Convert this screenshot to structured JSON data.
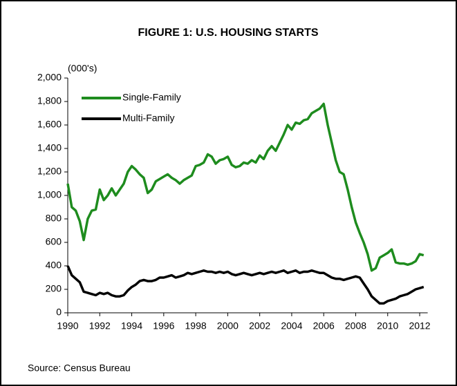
{
  "chart_data": {
    "type": "line",
    "title": "FIGURE 1: U.S. HOUSING STARTS",
    "y_label": "(000's)",
    "source": "Source: Census Bureau",
    "legend": "upper left",
    "grid": false,
    "xlim": [
      1990,
      2012.5
    ],
    "ylim": [
      0,
      2000
    ],
    "xticks": [
      1990,
      1992,
      1994,
      1996,
      1998,
      2000,
      2002,
      2004,
      2006,
      2008,
      2010,
      2012
    ],
    "yticks": [
      0,
      200,
      400,
      600,
      800,
      {
        "value": 1000,
        "label": "1,000"
      },
      {
        "value": 1200,
        "label": "1,200"
      },
      {
        "value": 1400,
        "label": "1,400"
      },
      {
        "value": 1600,
        "label": "1,600"
      },
      {
        "value": 1800,
        "label": "1,800"
      },
      {
        "value": 2000,
        "label": "2,000"
      }
    ],
    "x": [
      1990,
      1990.25,
      1990.5,
      1990.75,
      1991,
      1991.25,
      1991.5,
      1991.75,
      1992,
      1992.25,
      1992.5,
      1992.75,
      1993,
      1993.25,
      1993.5,
      1993.75,
      1994,
      1994.25,
      1994.5,
      1994.75,
      1995,
      1995.25,
      1995.5,
      1995.75,
      1996,
      1996.25,
      1996.5,
      1996.75,
      1997,
      1997.25,
      1997.5,
      1997.75,
      1998,
      1998.25,
      1998.5,
      1998.75,
      1999,
      1999.25,
      1999.5,
      1999.75,
      2000,
      2000.25,
      2000.5,
      2000.75,
      2001,
      2001.25,
      2001.5,
      2001.75,
      2002,
      2002.25,
      2002.5,
      2002.75,
      2003,
      2003.25,
      2003.5,
      2003.75,
      2004,
      2004.25,
      2004.5,
      2004.75,
      2005,
      2005.25,
      2005.5,
      2005.75,
      2006,
      2006.25,
      2006.5,
      2006.75,
      2007,
      2007.25,
      2007.5,
      2007.75,
      2008,
      2008.25,
      2008.5,
      2008.75,
      2009,
      2009.25,
      2009.5,
      2009.75,
      2010,
      2010.25,
      2010.5,
      2010.75,
      2011,
      2011.25,
      2011.5,
      2011.75,
      2012,
      2012.25
    ],
    "series": [
      {
        "name": "Single-Family",
        "color": "#1e8c1e",
        "values": [
          1100,
          900,
          870,
          780,
          620,
          800,
          870,
          880,
          1050,
          960,
          1000,
          1060,
          1000,
          1050,
          1100,
          1200,
          1250,
          1220,
          1180,
          1150,
          1020,
          1050,
          1120,
          1140,
          1160,
          1180,
          1150,
          1130,
          1100,
          1130,
          1150,
          1170,
          1250,
          1260,
          1280,
          1350,
          1330,
          1270,
          1300,
          1310,
          1330,
          1260,
          1240,
          1250,
          1280,
          1270,
          1300,
          1280,
          1340,
          1310,
          1380,
          1420,
          1380,
          1450,
          1520,
          1600,
          1560,
          1620,
          1610,
          1640,
          1650,
          1700,
          1720,
          1740,
          1780,
          1600,
          1450,
          1300,
          1200,
          1180,
          1050,
          900,
          770,
          680,
          600,
          500,
          360,
          380,
          470,
          490,
          510,
          540,
          430,
          420,
          420,
          410,
          420,
          440,
          500,
          490
        ]
      },
      {
        "name": "Multi-Family",
        "color": "#000000",
        "values": [
          400,
          320,
          290,
          260,
          180,
          170,
          160,
          150,
          170,
          160,
          170,
          150,
          140,
          140,
          150,
          190,
          220,
          240,
          270,
          280,
          270,
          270,
          280,
          300,
          300,
          310,
          320,
          300,
          310,
          320,
          340,
          330,
          340,
          350,
          360,
          350,
          350,
          340,
          350,
          340,
          350,
          330,
          320,
          330,
          340,
          330,
          320,
          330,
          340,
          330,
          340,
          350,
          340,
          350,
          360,
          340,
          350,
          360,
          340,
          350,
          350,
          360,
          350,
          340,
          340,
          320,
          300,
          290,
          290,
          280,
          290,
          300,
          310,
          300,
          250,
          200,
          140,
          110,
          80,
          80,
          100,
          110,
          120,
          140,
          150,
          160,
          180,
          200,
          210,
          220
        ]
      }
    ]
  }
}
